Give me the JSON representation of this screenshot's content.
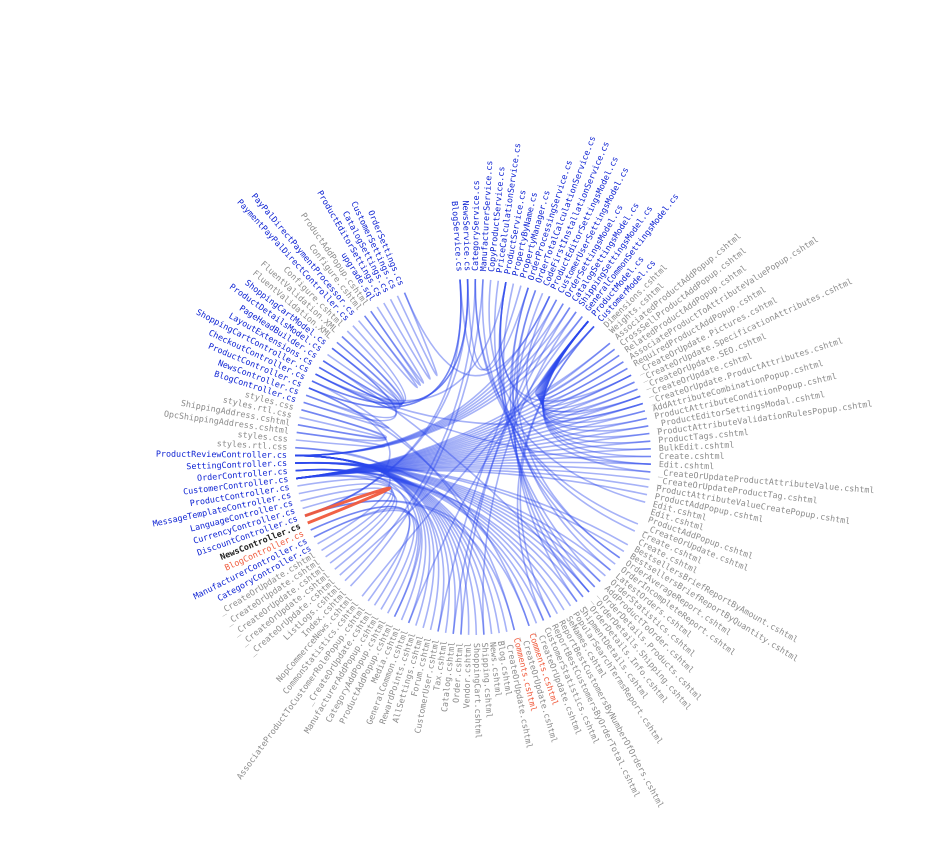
{
  "colors": {
    "background": "#ffffff",
    "cs_node": "#0a1fd2",
    "cshtml_node": "#8c8c8c",
    "highlight_node": "#222222",
    "linked_node": "#f05a3c",
    "edge": "#2a48ec",
    "edge_highlight": "#f05a3c"
  },
  "highlighted": "NewsController.cs",
  "nodes": [
    {
      "id": "BlogService.cs",
      "kind": "cs"
    },
    {
      "id": "NewsService.cs",
      "kind": "cs"
    },
    {
      "id": "CategoryService.cs",
      "kind": "cs"
    },
    {
      "id": "ManufacturerService.cs",
      "kind": "cs"
    },
    {
      "id": "CopyProductService.cs",
      "kind": "cs"
    },
    {
      "id": "PriceCalculationService.cs",
      "kind": "cs"
    },
    {
      "id": "ProductService.cs",
      "kind": "cs"
    },
    {
      "id": "PropertyByName.cs",
      "kind": "cs"
    },
    {
      "id": "PropertyManager.cs",
      "kind": "cs"
    },
    {
      "id": "OrderProcessingService.cs",
      "kind": "cs"
    },
    {
      "id": "OrderTotalCalculationService.cs",
      "kind": "cs"
    },
    {
      "id": "CodeFirstInstallationService.cs",
      "kind": "cs"
    },
    {
      "id": "ProductEditorSettingsModel.cs",
      "kind": "cs"
    },
    {
      "id": "CustomerUserSettingsModel.cs",
      "kind": "cs"
    },
    {
      "id": "OrderSettingsModel.cs",
      "kind": "cs"
    },
    {
      "id": "CatalogSettingsModel.cs",
      "kind": "cs"
    },
    {
      "id": "ShippingSettingsModel.cs",
      "kind": "cs"
    },
    {
      "id": "GeneralCommonSettingsModel.cs",
      "kind": "cs"
    },
    {
      "id": "ProductModel.cs",
      "kind": "cs"
    },
    {
      "id": "CustomerModel.cs",
      "kind": "cs"
    },
    {
      "id": "Dimensions.cshtml",
      "kind": "cshtml"
    },
    {
      "id": "Weights.cshtml",
      "kind": "cshtml"
    },
    {
      "id": "AssociatedProductAddPopup.cshtml",
      "kind": "cshtml"
    },
    {
      "id": "CrossSellProductAddPopup.cshtml",
      "kind": "cshtml"
    },
    {
      "id": "RelatedProductAddPopup.cshtml",
      "kind": "cshtml"
    },
    {
      "id": "AssociateProductToAttributeValuePopup.cshtml",
      "kind": "cshtml"
    },
    {
      "id": "RequiredProductAddPopup.cshtml",
      "kind": "cshtml"
    },
    {
      "id": "_CreateOrUpdate.Pictures.cshtml",
      "kind": "cshtml"
    },
    {
      "id": "_CreateOrUpdate.SpecificationAttributes.cshtml",
      "kind": "cshtml"
    },
    {
      "id": "_CreateOrUpdate.SEO.cshtml",
      "kind": "cshtml"
    },
    {
      "id": "_CreateOrUpdate.cshtml",
      "kind": "cshtml"
    },
    {
      "id": "_CreateOrUpdate.ProductAttributes.cshtml",
      "kind": "cshtml"
    },
    {
      "id": "AddAttributeCombinationPopup.cshtml",
      "kind": "cshtml"
    },
    {
      "id": "ProductAttributeConditionPopup.cshtml",
      "kind": "cshtml"
    },
    {
      "id": "_ProductEditorSettingsModal.cshtml",
      "kind": "cshtml"
    },
    {
      "id": "ProductAttributeValidationRulesPopup.cshtml",
      "kind": "cshtml"
    },
    {
      "id": "ProductTags.cshtml",
      "kind": "cshtml"
    },
    {
      "id": "BulkEdit.cshtml",
      "kind": "cshtml"
    },
    {
      "id": "Create.cshtml",
      "kind": "cshtml"
    },
    {
      "id": "Edit.cshtml",
      "kind": "cshtml"
    },
    {
      "id": "_CreateOrUpdateProductAttributeValue.cshtml",
      "kind": "cshtml"
    },
    {
      "id": "_CreateOrUpdateProductTag.cshtml",
      "kind": "cshtml"
    },
    {
      "id": "ProductAttributeValueCreatePopup.cshtml",
      "kind": "cshtml"
    },
    {
      "id": "ProductAddPopup.cshtml",
      "kind": "cshtml"
    },
    {
      "id": "Edit.cshtml",
      "kind": "cshtml"
    },
    {
      "id": "Edit.cshtml",
      "kind": "cshtml"
    },
    {
      "id": "ProductAddPopup.cshtml",
      "kind": "cshtml"
    },
    {
      "id": "_CreateOrUpdate.cshtml",
      "kind": "cshtml"
    },
    {
      "id": "Create.cshtml",
      "kind": "cshtml"
    },
    {
      "id": "Create.cshtml",
      "kind": "cshtml"
    },
    {
      "id": "BestsellersBriefReportByAmount.cshtml",
      "kind": "cshtml"
    },
    {
      "id": "BestsellersBriefReportByQuantity.cshtml",
      "kind": "cshtml"
    },
    {
      "id": "OrderAverageReport.cshtml",
      "kind": "cshtml"
    },
    {
      "id": "OrderIncompleteReport.cshtml",
      "kind": "cshtml"
    },
    {
      "id": "LatestOrders.cshtml",
      "kind": "cshtml"
    },
    {
      "id": "OrderStatistics.cshtml",
      "kind": "cshtml"
    },
    {
      "id": "AddProductToOrder.cshtml",
      "kind": "cshtml"
    },
    {
      "id": "_OrderDetails.Products.cshtml",
      "kind": "cshtml"
    },
    {
      "id": "_OrderDetails.Shipping.cshtml",
      "kind": "cshtml"
    },
    {
      "id": "_OrderDetails.Info.cshtml",
      "kind": "cshtml"
    },
    {
      "id": "ShipmentDetails.cshtml",
      "kind": "cshtml"
    },
    {
      "id": "PopularSearchTermsReport.cshtml",
      "kind": "cshtml"
    },
    {
      "id": "SeNames.cshtml",
      "kind": "cshtml"
    },
    {
      "id": "ReportBestCustomersByNumberOfOrders.cshtml",
      "kind": "cshtml"
    },
    {
      "id": "ReportBestCustomersByOrderTotal.cshtml",
      "kind": "cshtml"
    },
    {
      "id": "CustomerStatistics.cshtml",
      "kind": "cshtml"
    },
    {
      "id": "_CreateOrUpdate.cshtml",
      "kind": "cshtml"
    },
    {
      "id": "Comments.cshtml",
      "kind": "linked"
    },
    {
      "id": "_CreateOrUpdate.cshtml",
      "kind": "cshtml"
    },
    {
      "id": "Comments.cshtml",
      "kind": "linked"
    },
    {
      "id": "_CreateOrUpdate.cshtml",
      "kind": "cshtml"
    },
    {
      "id": "Blog.cshtml",
      "kind": "cshtml"
    },
    {
      "id": "News.cshtml",
      "kind": "cshtml"
    },
    {
      "id": "Shipping.cshtml",
      "kind": "cshtml"
    },
    {
      "id": "ShoppingCart.cshtml",
      "kind": "cshtml"
    },
    {
      "id": "Vendor.cshtml",
      "kind": "cshtml"
    },
    {
      "id": "Order.cshtml",
      "kind": "cshtml"
    },
    {
      "id": "Catalog.cshtml",
      "kind": "cshtml"
    },
    {
      "id": "Tax.cshtml",
      "kind": "cshtml"
    },
    {
      "id": "CustomerUser.cshtml",
      "kind": "cshtml"
    },
    {
      "id": "Forum.cshtml",
      "kind": "cshtml"
    },
    {
      "id": "AllSettings.cshtml",
      "kind": "cshtml"
    },
    {
      "id": "RewardPoints.cshtml",
      "kind": "cshtml"
    },
    {
      "id": "GeneralCommon.cshtml",
      "kind": "cshtml"
    },
    {
      "id": "Media.cshtml",
      "kind": "cshtml"
    },
    {
      "id": "ProductAddPopup.cshtml",
      "kind": "cshtml"
    },
    {
      "id": "CategoryAddPopup.cshtml",
      "kind": "cshtml"
    },
    {
      "id": "ManufacturerAddPopup.cshtml",
      "kind": "cshtml"
    },
    {
      "id": "_CreateOrUpdate.cshtml",
      "kind": "cshtml"
    },
    {
      "id": "AssociateProductToCustomerRolePopup.cshtml",
      "kind": "cshtml"
    },
    {
      "id": "CommonStatistics.cshtml",
      "kind": "cshtml"
    },
    {
      "id": "NopCommerceNews.cshtml",
      "kind": "cshtml"
    },
    {
      "id": "Index.cshtml",
      "kind": "cshtml"
    },
    {
      "id": "ListLogs.cshtml",
      "kind": "cshtml"
    },
    {
      "id": "_CreateOrUpdate.cshtml",
      "kind": "cshtml"
    },
    {
      "id": "_CreateOrUpdate.cshtml",
      "kind": "cshtml"
    },
    {
      "id": "_CreateOrUpdate.cshtml",
      "kind": "cshtml"
    },
    {
      "id": "_CreateOrUpdate.cshtml",
      "kind": "cshtml"
    },
    {
      "id": "_CreateOrUpdate.cshtml",
      "kind": "cshtml"
    },
    {
      "id": "CategoryController.cs",
      "kind": "cs"
    },
    {
      "id": "ManufacturerController.cs",
      "kind": "cs"
    },
    {
      "id": "BlogController.cs",
      "kind": "linked"
    },
    {
      "id": "NewsController.cs",
      "kind": "highlight"
    },
    {
      "id": "DiscountController.cs",
      "kind": "cs"
    },
    {
      "id": "CurrencyController.cs",
      "kind": "cs"
    },
    {
      "id": "LanguageController.cs",
      "kind": "cs"
    },
    {
      "id": "MessageTemplateController.cs",
      "kind": "cs"
    },
    {
      "id": "ProductController.cs",
      "kind": "cs"
    },
    {
      "id": "CustomerController.cs",
      "kind": "cs"
    },
    {
      "id": "OrderController.cs",
      "kind": "cs"
    },
    {
      "id": "SettingController.cs",
      "kind": "cs"
    },
    {
      "id": "ProductReviewController.cs",
      "kind": "cs"
    },
    {
      "id": "styles.rtl.css",
      "kind": "cshtml"
    },
    {
      "id": "styles.css",
      "kind": "cshtml"
    },
    {
      "id": "OpcShippingAddress.cshtml",
      "kind": "cshtml"
    },
    {
      "id": "ShippingAddress.cshtml",
      "kind": "cshtml"
    },
    {
      "id": "styles.rtl.css",
      "kind": "cshtml"
    },
    {
      "id": "styles.css",
      "kind": "cshtml"
    },
    {
      "id": "BlogController.cs",
      "kind": "cs"
    },
    {
      "id": "NewsController.cs",
      "kind": "cs"
    },
    {
      "id": "ProductController.cs",
      "kind": "cs"
    },
    {
      "id": "CheckoutController.cs",
      "kind": "cs"
    },
    {
      "id": "ShoppingCartController.cs",
      "kind": "cs"
    },
    {
      "id": "LayoutExtensions.cs",
      "kind": "cs"
    },
    {
      "id": "PageHeadBuilder.cs",
      "kind": "cs"
    },
    {
      "id": "ProductDetailsModel.cs",
      "kind": "cs"
    },
    {
      "id": "ShoppingCartModel.cs",
      "kind": "cs"
    },
    {
      "id": "FluentValidation.XML",
      "kind": "cshtml"
    },
    {
      "id": "FluentValidation.XML",
      "kind": "cshtml"
    },
    {
      "id": "Configure.cshtml",
      "kind": "cshtml"
    },
    {
      "id": "PaymentPayPalDirectController.cs",
      "kind": "cs"
    },
    {
      "id": "PayPalDirectPaymentProcessor.cs",
      "kind": "cs"
    },
    {
      "id": "Configure.cshtml",
      "kind": "cshtml"
    },
    {
      "id": "ProductAddPopup.cshtml",
      "kind": "cshtml"
    },
    {
      "id": "upgrade.sql",
      "kind": "cs"
    },
    {
      "id": "ProductEditorSettings.cs",
      "kind": "cs"
    },
    {
      "id": "CatalogSettings.cs",
      "kind": "cs"
    },
    {
      "id": "CustomerSettings.cs",
      "kind": "cs"
    },
    {
      "id": "OrderSettings.cs",
      "kind": "cs"
    }
  ],
  "links": [
    [
      103,
      120
    ],
    [
      103,
      0
    ],
    [
      103,
      1
    ],
    [
      103,
      67
    ],
    [
      103,
      69
    ],
    [
      103,
      102
    ],
    [
      0,
      8
    ],
    [
      1,
      9
    ],
    [
      0,
      120
    ],
    [
      1,
      121
    ],
    [
      2,
      44
    ],
    [
      2,
      47
    ],
    [
      3,
      48
    ],
    [
      4,
      40
    ],
    [
      5,
      52
    ],
    [
      6,
      53
    ],
    [
      6,
      56
    ],
    [
      7,
      57
    ],
    [
      9,
      58
    ],
    [
      10,
      59
    ],
    [
      11,
      60
    ],
    [
      12,
      34
    ],
    [
      13,
      79
    ],
    [
      14,
      76
    ],
    [
      15,
      77
    ],
    [
      16,
      73
    ],
    [
      17,
      83
    ],
    [
      18,
      30
    ],
    [
      18,
      31
    ],
    [
      18,
      27
    ],
    [
      18,
      28
    ],
    [
      18,
      29
    ],
    [
      19,
      94
    ],
    [
      19,
      90
    ],
    [
      18,
      22
    ],
    [
      18,
      23
    ],
    [
      18,
      24
    ],
    [
      18,
      25
    ],
    [
      18,
      26
    ],
    [
      18,
      36
    ],
    [
      18,
      37
    ],
    [
      18,
      38
    ],
    [
      18,
      39
    ],
    [
      18,
      32
    ],
    [
      18,
      33
    ],
    [
      18,
      35
    ],
    [
      108,
      30
    ],
    [
      108,
      31
    ],
    [
      108,
      27
    ],
    [
      108,
      28
    ],
    [
      108,
      29
    ],
    [
      108,
      22
    ],
    [
      108,
      23
    ],
    [
      108,
      24
    ],
    [
      108,
      25
    ],
    [
      108,
      26
    ],
    [
      108,
      32
    ],
    [
      108,
      33
    ],
    [
      108,
      34
    ],
    [
      108,
      35
    ],
    [
      108,
      36
    ],
    [
      108,
      37
    ],
    [
      108,
      38
    ],
    [
      108,
      39
    ],
    [
      108,
      40
    ],
    [
      108,
      41
    ],
    [
      108,
      42
    ],
    [
      108,
      43
    ],
    [
      108,
      85
    ],
    [
      110,
      51
    ],
    [
      110,
      54
    ],
    [
      110,
      55
    ],
    [
      110,
      56
    ],
    [
      110,
      57
    ],
    [
      110,
      58
    ],
    [
      110,
      59
    ],
    [
      110,
      60
    ],
    [
      110,
      50
    ],
    [
      109,
      64
    ],
    [
      109,
      63
    ],
    [
      109,
      65
    ],
    [
      109,
      79
    ],
    [
      109,
      88
    ],
    [
      111,
      70
    ],
    [
      111,
      71
    ],
    [
      111,
      72
    ],
    [
      111,
      73
    ],
    [
      111,
      74
    ],
    [
      111,
      75
    ],
    [
      111,
      76
    ],
    [
      111,
      77
    ],
    [
      111,
      78
    ],
    [
      111,
      80
    ],
    [
      111,
      81
    ],
    [
      111,
      82
    ],
    [
      111,
      83
    ],
    [
      111,
      84
    ],
    [
      100,
      89
    ],
    [
      100,
      85
    ],
    [
      101,
      87
    ],
    [
      101,
      86
    ],
    [
      104,
      95
    ],
    [
      105,
      96
    ],
    [
      106,
      97
    ],
    [
      107,
      98
    ],
    [
      112,
      66
    ],
    [
      112,
      99
    ],
    [
      111,
      139
    ],
    [
      111,
      140
    ],
    [
      111,
      141
    ],
    [
      111,
      142
    ],
    [
      111,
      14
    ],
    [
      111,
      15
    ],
    [
      111,
      16
    ],
    [
      111,
      12
    ],
    [
      111,
      13
    ],
    [
      111,
      17
    ],
    [
      122,
      127
    ],
    [
      122,
      6
    ],
    [
      124,
      127
    ],
    [
      124,
      128
    ],
    [
      125,
      126
    ],
    [
      123,
      129
    ],
    [
      123,
      128
    ],
    [
      126,
      118
    ],
    [
      126,
      119
    ],
    [
      114,
      113
    ],
    [
      115,
      116
    ],
    [
      117,
      115
    ],
    [
      132,
      133
    ],
    [
      133,
      134
    ],
    [
      131,
      132
    ],
    [
      135,
      136
    ],
    [
      130,
      123
    ],
    [
      137,
      138
    ],
    [
      138,
      139
    ],
    [
      139,
      140
    ],
    [
      139,
      141
    ],
    [
      139,
      142
    ],
    [
      142,
      9
    ],
    [
      141,
      6
    ],
    [
      140,
      2
    ],
    [
      138,
      12
    ],
    [
      120,
      67
    ],
    [
      121,
      69
    ],
    [
      120,
      0
    ],
    [
      121,
      1
    ],
    [
      122,
      31
    ],
    [
      122,
      39
    ],
    [
      124,
      58
    ],
    [
      108,
      61
    ],
    [
      109,
      62
    ],
    [
      19,
      64
    ],
    [
      19,
      65
    ],
    [
      10,
      52
    ],
    [
      9,
      54
    ],
    [
      6,
      27
    ],
    [
      6,
      30
    ],
    [
      2,
      93
    ],
    [
      3,
      92
    ],
    [
      119,
      118
    ],
    [
      117,
      114
    ]
  ]
}
